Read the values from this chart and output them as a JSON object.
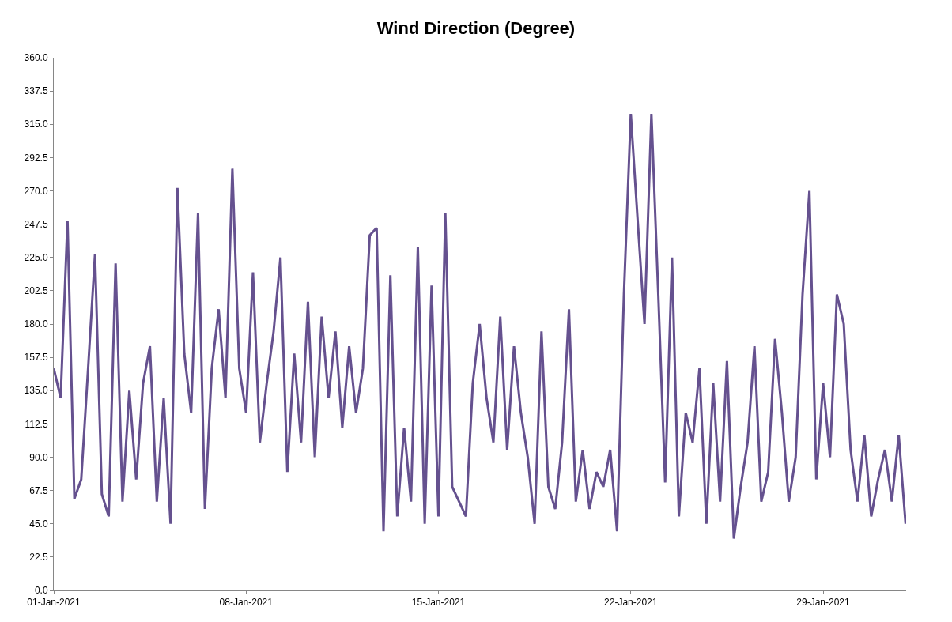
{
  "chart_data": {
    "type": "line",
    "title": "Wind Direction (Degree)",
    "x": [
      "2021-01-01T00:00",
      "2021-01-01T06:00",
      "2021-01-01T12:00",
      "2021-01-01T18:00",
      "2021-01-02T00:00",
      "2021-01-02T06:00",
      "2021-01-02T12:00",
      "2021-01-02T18:00",
      "2021-01-03T00:00",
      "2021-01-03T06:00",
      "2021-01-03T12:00",
      "2021-01-03T18:00",
      "2021-01-04T00:00",
      "2021-01-04T06:00",
      "2021-01-04T12:00",
      "2021-01-04T18:00",
      "2021-01-05T00:00",
      "2021-01-05T06:00",
      "2021-01-05T12:00",
      "2021-01-05T18:00",
      "2021-01-06T00:00",
      "2021-01-06T06:00",
      "2021-01-06T12:00",
      "2021-01-06T18:00",
      "2021-01-07T00:00",
      "2021-01-07T06:00",
      "2021-01-07T12:00",
      "2021-01-07T18:00",
      "2021-01-08T00:00",
      "2021-01-08T06:00",
      "2021-01-08T12:00",
      "2021-01-08T18:00",
      "2021-01-09T00:00",
      "2021-01-09T06:00",
      "2021-01-09T12:00",
      "2021-01-09T18:00",
      "2021-01-10T00:00",
      "2021-01-10T06:00",
      "2021-01-10T12:00",
      "2021-01-10T18:00",
      "2021-01-11T00:00",
      "2021-01-11T06:00",
      "2021-01-11T12:00",
      "2021-01-11T18:00",
      "2021-01-12T00:00",
      "2021-01-12T06:00",
      "2021-01-12T12:00",
      "2021-01-12T18:00",
      "2021-01-13T00:00",
      "2021-01-13T06:00",
      "2021-01-13T12:00",
      "2021-01-13T18:00",
      "2021-01-14T00:00",
      "2021-01-14T06:00",
      "2021-01-14T12:00",
      "2021-01-14T18:00",
      "2021-01-15T00:00",
      "2021-01-15T06:00",
      "2021-01-15T12:00",
      "2021-01-15T18:00",
      "2021-01-16T00:00",
      "2021-01-16T06:00",
      "2021-01-16T12:00",
      "2021-01-16T18:00",
      "2021-01-17T00:00",
      "2021-01-17T06:00",
      "2021-01-17T12:00",
      "2021-01-17T18:00",
      "2021-01-18T00:00",
      "2021-01-18T06:00",
      "2021-01-18T12:00",
      "2021-01-18T18:00",
      "2021-01-19T00:00",
      "2021-01-19T06:00",
      "2021-01-19T12:00",
      "2021-01-19T18:00",
      "2021-01-20T00:00",
      "2021-01-20T06:00",
      "2021-01-20T12:00",
      "2021-01-20T18:00",
      "2021-01-21T00:00",
      "2021-01-21T06:00",
      "2021-01-21T12:00",
      "2021-01-21T18:00",
      "2021-01-22T00:00",
      "2021-01-22T06:00",
      "2021-01-22T12:00",
      "2021-01-22T18:00",
      "2021-01-23T00:00",
      "2021-01-23T06:00",
      "2021-01-23T12:00",
      "2021-01-23T18:00",
      "2021-01-24T00:00",
      "2021-01-24T06:00",
      "2021-01-24T12:00",
      "2021-01-24T18:00",
      "2021-01-25T00:00",
      "2021-01-25T06:00",
      "2021-01-25T12:00",
      "2021-01-25T18:00",
      "2021-01-26T00:00",
      "2021-01-26T06:00",
      "2021-01-26T12:00",
      "2021-01-26T18:00",
      "2021-01-27T00:00",
      "2021-01-27T06:00",
      "2021-01-27T12:00",
      "2021-01-27T18:00",
      "2021-01-28T00:00",
      "2021-01-28T06:00",
      "2021-01-28T12:00",
      "2021-01-28T18:00",
      "2021-01-29T00:00",
      "2021-01-29T06:00",
      "2021-01-29T12:00",
      "2021-01-29T18:00",
      "2021-01-30T00:00",
      "2021-01-30T06:00",
      "2021-01-30T12:00",
      "2021-01-30T18:00",
      "2021-01-31T00:00",
      "2021-01-31T06:00",
      "2021-01-31T12:00",
      "2021-01-31T18:00",
      "2021-02-01T00:00"
    ],
    "series": [
      {
        "color": "#65518f",
        "values": [
          150,
          130,
          250,
          62,
          75,
          150,
          227,
          65,
          50,
          221,
          60,
          135,
          75,
          140,
          165,
          60,
          130,
          45,
          272,
          160,
          120,
          255,
          55,
          150,
          190,
          130,
          285,
          150,
          120,
          215,
          100,
          140,
          175,
          225,
          80,
          160,
          100,
          195,
          90,
          185,
          130,
          175,
          110,
          165,
          120,
          150,
          240,
          245,
          40,
          213,
          50,
          110,
          60,
          232,
          45,
          206,
          50,
          255,
          70,
          60,
          50,
          140,
          180,
          130,
          100,
          185,
          95,
          165,
          120,
          90,
          45,
          175,
          70,
          55,
          100,
          190,
          60,
          95,
          55,
          80,
          70,
          95,
          40,
          200,
          322,
          250,
          180,
          322,
          200,
          73,
          225,
          50,
          120,
          100,
          150,
          45,
          140,
          60,
          155,
          35,
          70,
          100,
          165,
          60,
          80,
          170,
          120,
          60,
          90,
          200,
          270,
          75,
          140,
          90,
          200,
          180,
          95,
          60,
          105,
          50,
          75,
          95,
          60,
          105,
          45
        ]
      }
    ],
    "xlim": [
      "2021-01-01T00:00",
      "2021-02-01T00:30"
    ],
    "xticks": [
      {
        "value": "2021-01-01",
        "label": "01-Jan-2021"
      },
      {
        "value": "2021-01-08",
        "label": "08-Jan-2021"
      },
      {
        "value": "2021-01-15",
        "label": "15-Jan-2021"
      },
      {
        "value": "2021-01-22",
        "label": "22-Jan-2021"
      },
      {
        "value": "2021-01-29",
        "label": "29-Jan-2021"
      }
    ],
    "ylim": [
      0,
      360
    ],
    "yticks": [
      {
        "value": 0,
        "label": "0.0"
      },
      {
        "value": 22.5,
        "label": "22.5"
      },
      {
        "value": 45,
        "label": "45.0"
      },
      {
        "value": 67.5,
        "label": "67.5"
      },
      {
        "value": 90,
        "label": "90.0"
      },
      {
        "value": 112.5,
        "label": "112.5"
      },
      {
        "value": 135,
        "label": "135.0"
      },
      {
        "value": 157.5,
        "label": "157.5"
      },
      {
        "value": 180,
        "label": "180.0"
      },
      {
        "value": 202.5,
        "label": "202.5"
      },
      {
        "value": 225,
        "label": "225.0"
      },
      {
        "value": 247.5,
        "label": "247.5"
      },
      {
        "value": 270,
        "label": "270.0"
      },
      {
        "value": 292.5,
        "label": "292.5"
      },
      {
        "value": 315,
        "label": "315.0"
      },
      {
        "value": 337.5,
        "label": "337.5"
      },
      {
        "value": 360,
        "label": "360.0"
      }
    ],
    "marker": "none",
    "line_style": "solid"
  }
}
